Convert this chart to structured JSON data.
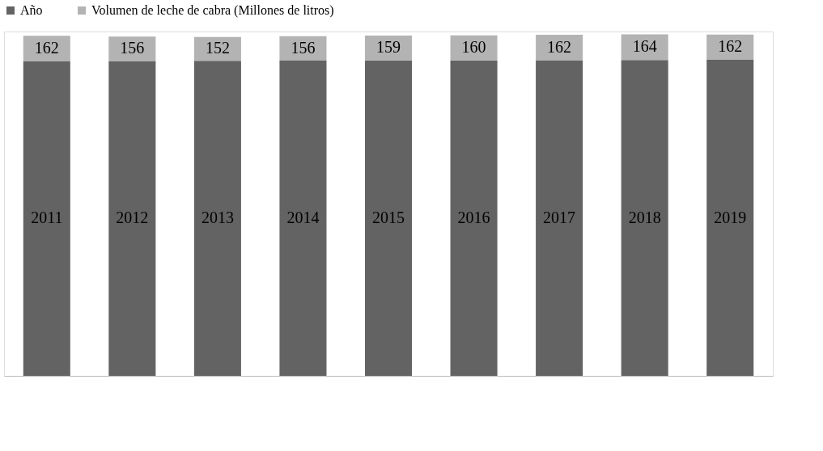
{
  "chart_data": {
    "type": "bar",
    "stacked": true,
    "categories": [
      null,
      null,
      null,
      null,
      null,
      null,
      null,
      null,
      null
    ],
    "series": [
      {
        "name": "Año",
        "color": "#636363",
        "values": [
          2011,
          2012,
          2013,
          2014,
          2015,
          2016,
          2017,
          2018,
          2019
        ]
      },
      {
        "name": "Volumen de leche de cabra (Millones de litros)",
        "color": "#b3b3b3",
        "values": [
          162,
          156,
          152,
          156,
          159,
          160,
          162,
          164,
          162
        ]
      }
    ],
    "data_labels": true,
    "legend": "top",
    "grid": false,
    "tick_labels": false
  }
}
